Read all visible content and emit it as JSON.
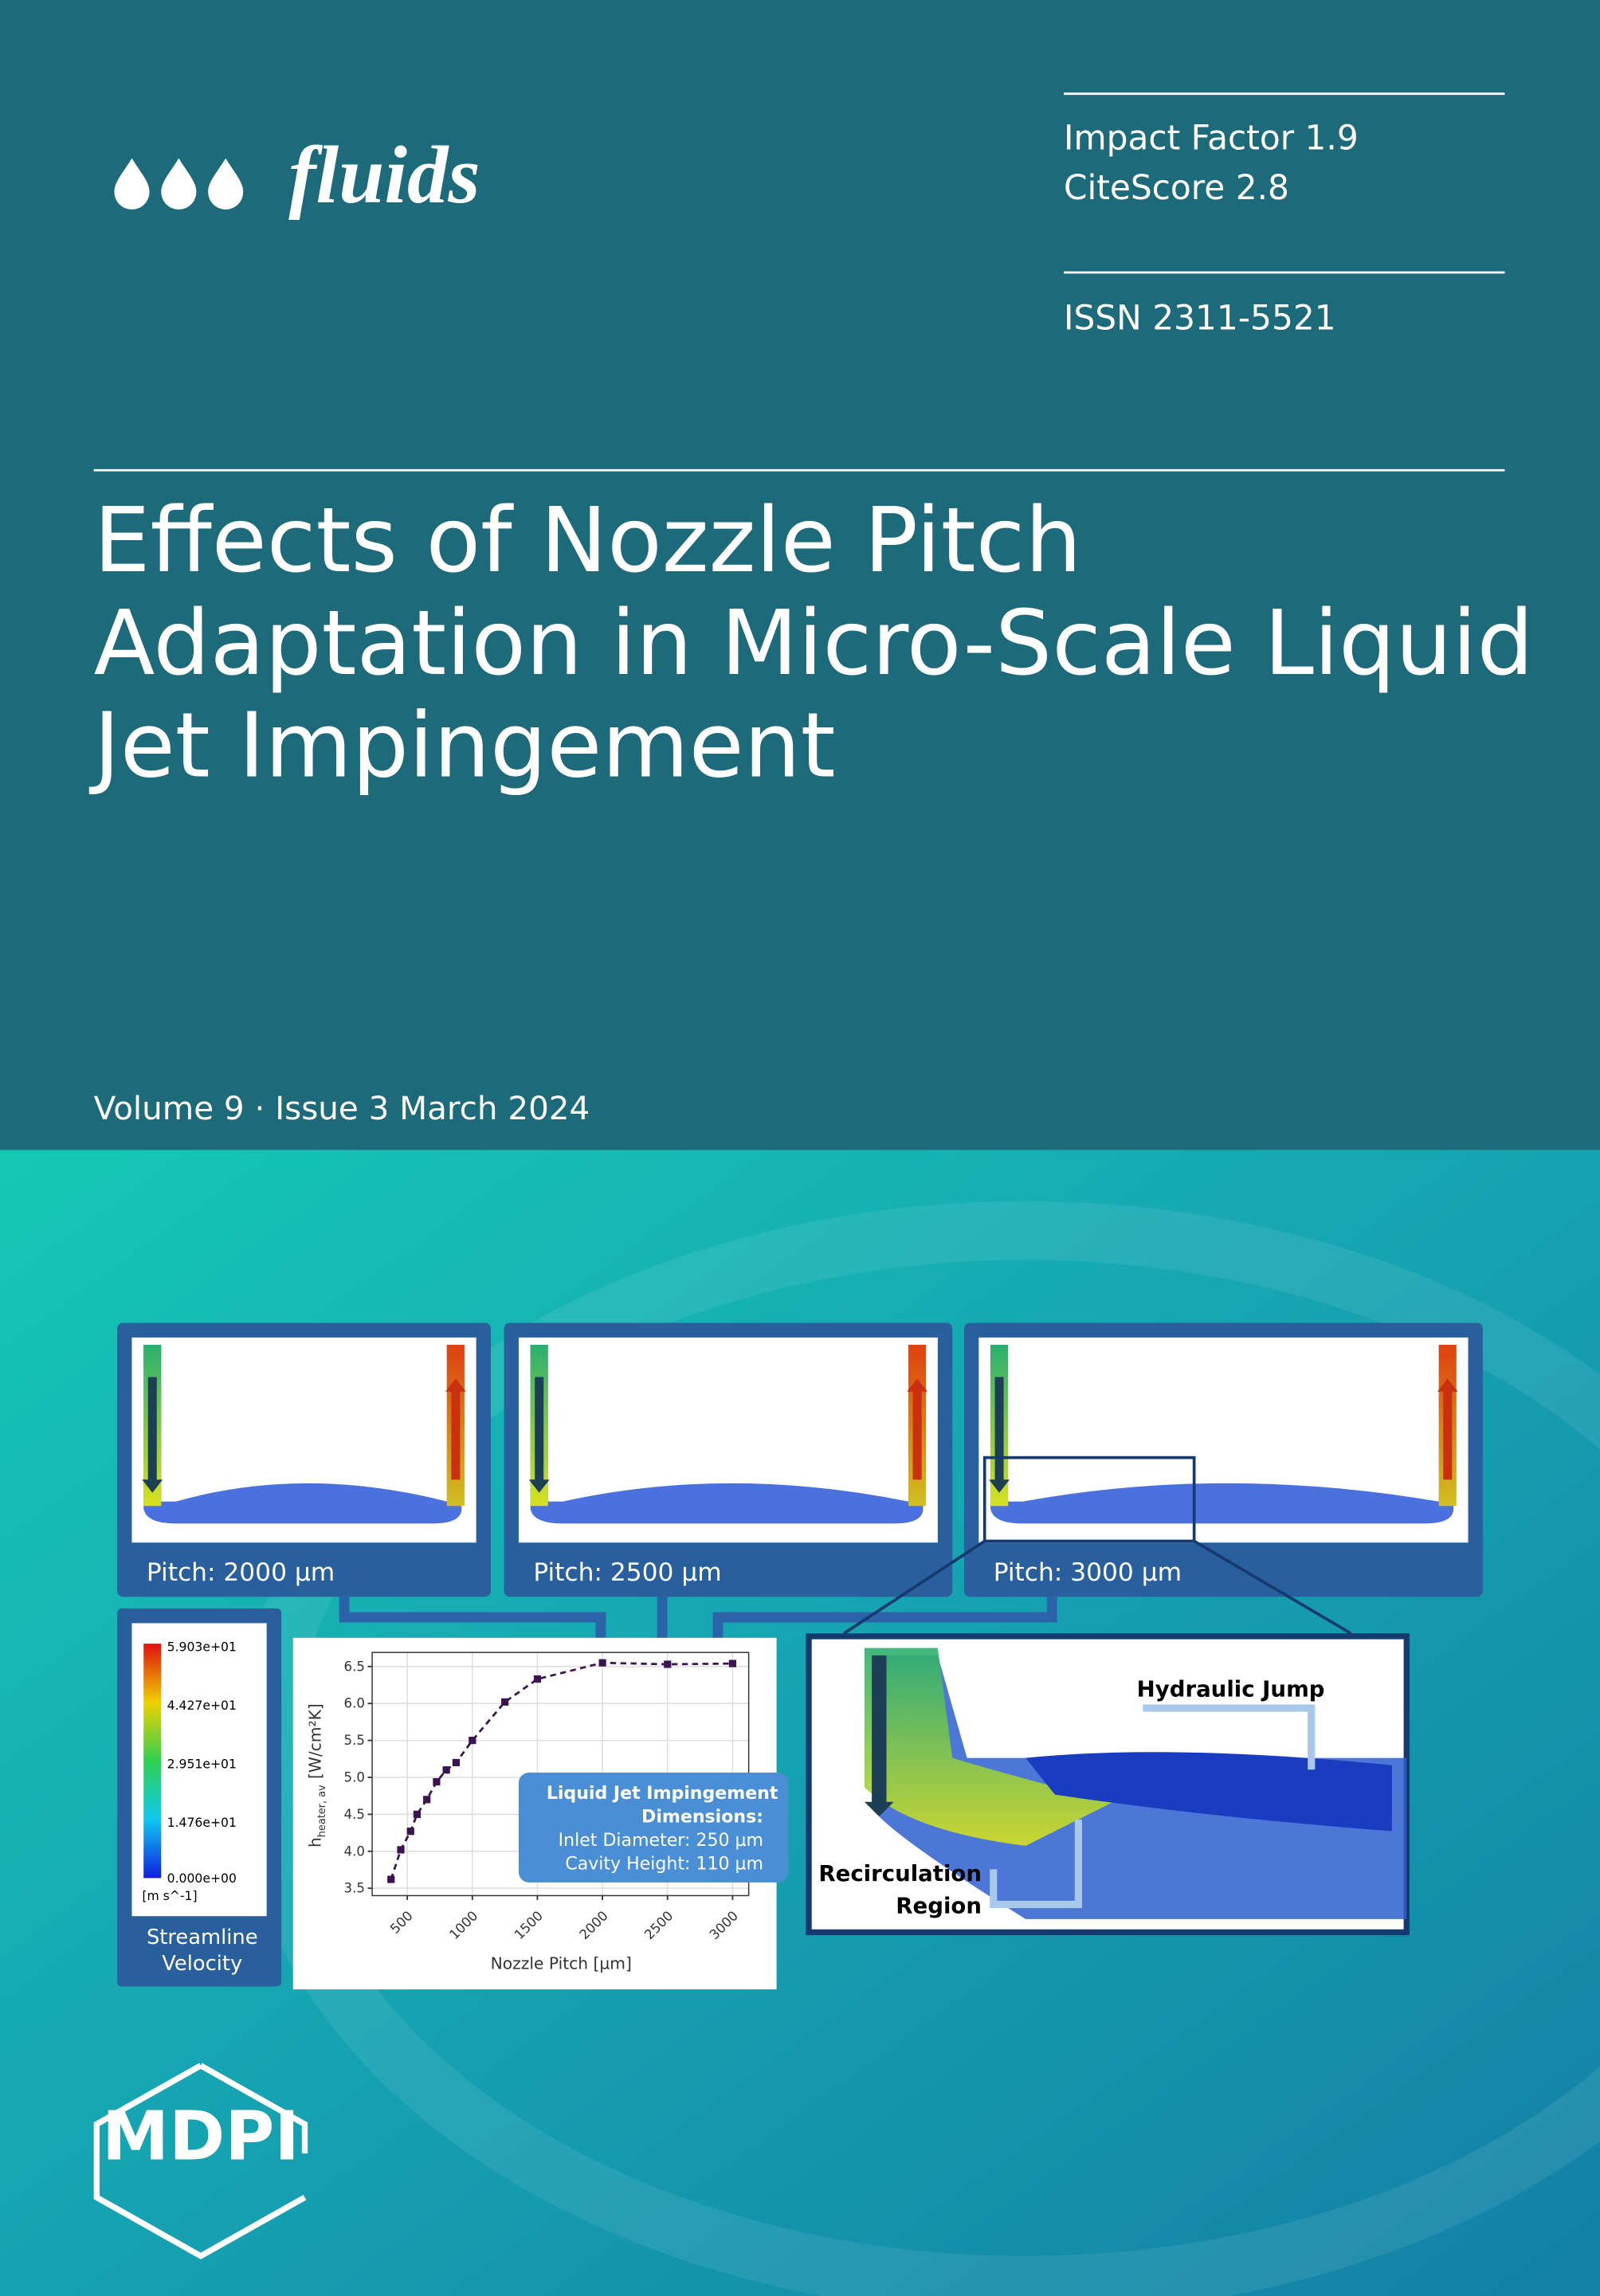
{
  "header": {
    "journal": "fluids",
    "impact_factor": "Impact Factor 1.9",
    "citescore": "CiteScore 2.8",
    "issn": "ISSN 2311-5521"
  },
  "title_lines": [
    "Effects of Nozzle Pitch",
    "Adaptation in Micro-Scale Liquid",
    "Jet Impingement"
  ],
  "issue": "Volume 9 · Issue 3 March 2024",
  "figure": {
    "panels": [
      "Pitch: 2000 µm",
      "Pitch: 2500 µm",
      "Pitch: 3000 µm"
    ],
    "legend": {
      "ticks": [
        "5.903e+01",
        "4.427e+01",
        "2.951e+01",
        "1.476e+01",
        "0.000e+00"
      ],
      "unit": "[m s^-1]",
      "caption": [
        "Streamline",
        "Velocity"
      ]
    },
    "chart": {
      "type": "line",
      "xlabel": "Nozzle Pitch [µm]",
      "ylabel": {
        "symbol": "h",
        "subscript": "heater, av",
        "unit": "[W/cm²K]"
      },
      "x": [
        375,
        450,
        525,
        575,
        650,
        725,
        800,
        875,
        1000,
        1250,
        1500,
        2000,
        2500,
        3000
      ],
      "values": [
        3.62,
        4.02,
        4.27,
        4.5,
        4.7,
        4.94,
        5.1,
        5.2,
        5.5,
        6.02,
        6.33,
        6.55,
        6.53,
        6.54
      ],
      "color": "#3b1450",
      "xlim": [
        230,
        3124
      ],
      "ylim": [
        3.4,
        6.69
      ],
      "xticks": [
        500,
        1000,
        1500,
        2000,
        2500,
        3000
      ],
      "yticks": [
        {
          "value": 3.5,
          "label": "3.5"
        },
        {
          "value": 4,
          "label": "4.0"
        },
        {
          "value": 4.5,
          "label": "4.5"
        },
        {
          "value": 5,
          "label": "5.0"
        },
        {
          "value": 5.5,
          "label": "5.5"
        },
        {
          "value": 6,
          "label": "6.0"
        },
        {
          "value": 6.5,
          "label": "6.5"
        }
      ],
      "grid": true
    },
    "dimensions": {
      "heading": [
        "Liquid Jet Impingement",
        "Dimensions:"
      ],
      "lines": [
        "Inlet Diameter: 250 µm",
        "Cavity Height: 110 µm"
      ]
    },
    "annotations": {
      "jump": "Hydraulic Jump",
      "recirculation": [
        "Recirculation",
        "Region"
      ]
    }
  },
  "publisher": "MDPI"
}
